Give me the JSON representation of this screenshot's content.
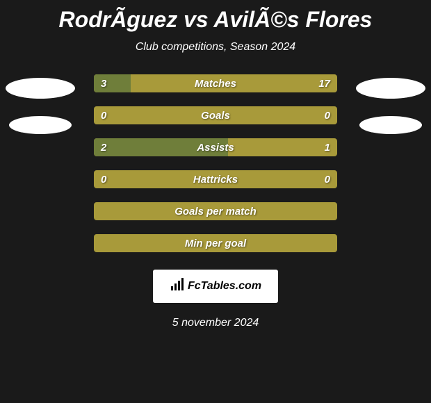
{
  "title": "RodrÃ­guez vs AvilÃ©s Flores",
  "subtitle": "Club competitions, Season 2024",
  "date": "5 november 2024",
  "logo_text": "FcTables.com",
  "colors": {
    "background": "#1a1a1a",
    "bar_base": "#a89a3a",
    "bar_fill": "#6f7e3a",
    "text": "#ffffff",
    "avatar": "#ffffff",
    "logo_bg": "#ffffff",
    "logo_text": "#000000"
  },
  "stats": [
    {
      "label": "Matches",
      "left_value": "3",
      "right_value": "17",
      "left_pct": 15,
      "right_pct": 0
    },
    {
      "label": "Goals",
      "left_value": "0",
      "right_value": "0",
      "left_pct": 0,
      "right_pct": 0
    },
    {
      "label": "Assists",
      "left_value": "2",
      "right_value": "1",
      "left_pct": 55,
      "right_pct": 0
    },
    {
      "label": "Hattricks",
      "left_value": "0",
      "right_value": "0",
      "left_pct": 0,
      "right_pct": 0
    },
    {
      "label": "Goals per match",
      "left_value": "",
      "right_value": "",
      "left_pct": 0,
      "right_pct": 0
    },
    {
      "label": "Min per goal",
      "left_value": "",
      "right_value": "",
      "left_pct": 0,
      "right_pct": 0
    }
  ]
}
